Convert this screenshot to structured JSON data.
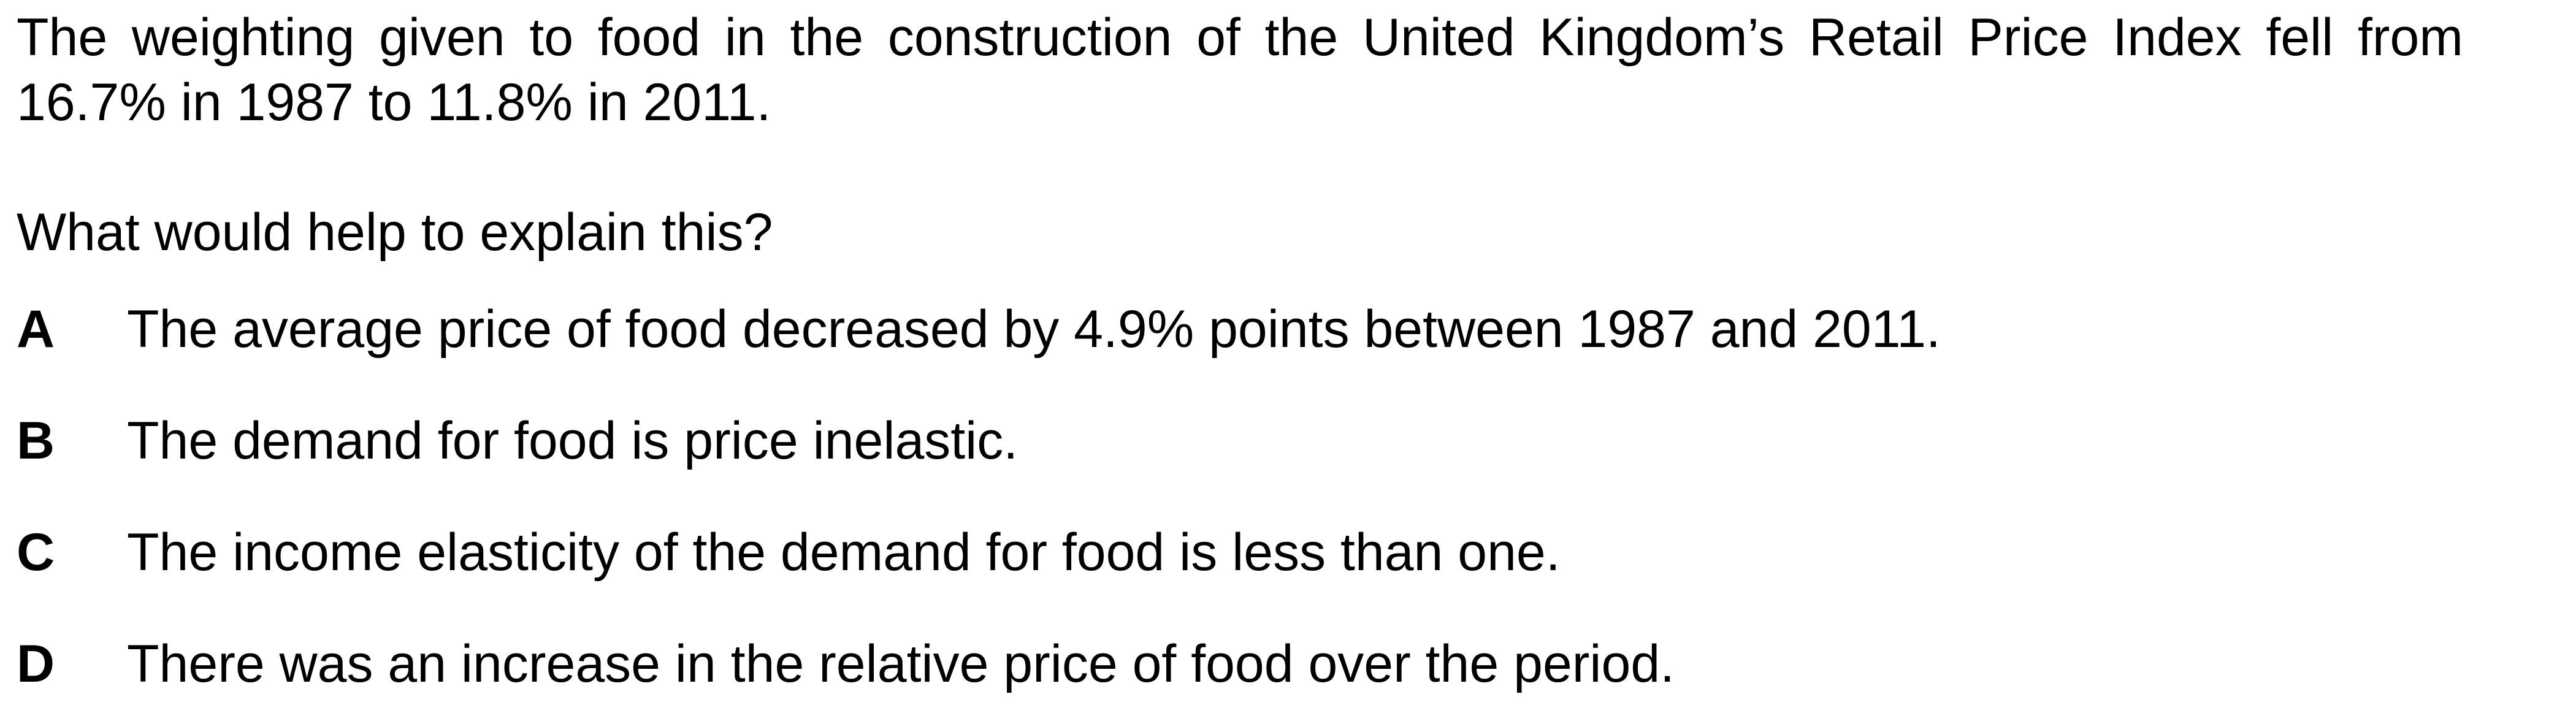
{
  "question": {
    "stem": "The weighting given to food in the construction of the United Kingdom’s Retail Price Index fell from 16.7% in 1987 to 11.8% in 2011.",
    "prompt": "What would help to explain this?",
    "options": [
      {
        "letter": "A",
        "text": "The average price of food decreased by 4.9% points between 1987 and 2011."
      },
      {
        "letter": "B",
        "text": "The demand for food is price inelastic."
      },
      {
        "letter": "C",
        "text": "The income elasticity of the demand for food is less than one."
      },
      {
        "letter": "D",
        "text": "There was an increase in the relative price of food over the period."
      }
    ]
  }
}
